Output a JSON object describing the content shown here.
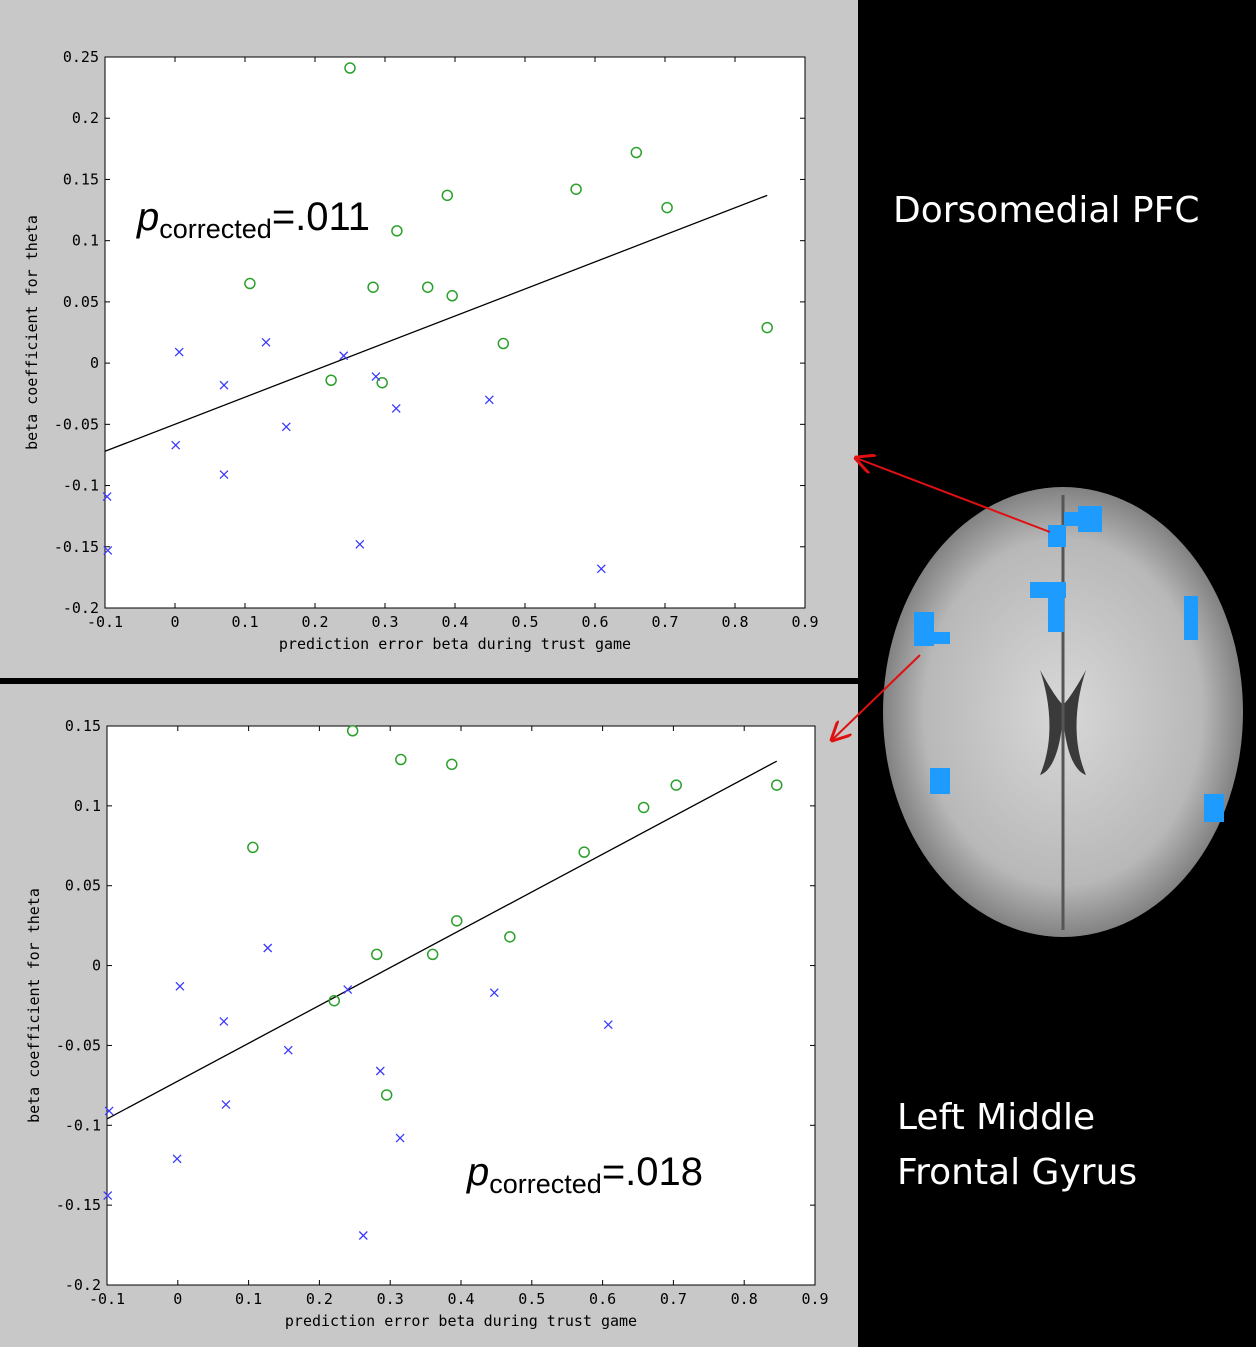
{
  "chart_data": [
    {
      "type": "scatter",
      "region_label": [
        "Dorsomedial PFC"
      ],
      "annotation": {
        "symbol": "p",
        "subscript": "corrected",
        "text": "=.011"
      },
      "x_label": "prediction error beta during trust game",
      "y_label": "beta coefficient for theta",
      "xlim": [
        -0.1,
        0.9
      ],
      "ylim": [
        -0.2,
        0.25
      ],
      "xticks": [
        -0.1,
        0,
        0.1,
        0.2,
        0.3,
        0.4,
        0.5,
        0.6,
        0.7,
        0.8,
        0.9
      ],
      "yticks": [
        -0.2,
        -0.15,
        -0.1,
        -0.05,
        0,
        0.05,
        0.1,
        0.15,
        0.2,
        0.25
      ],
      "series": [
        {
          "color": "#2ca02c",
          "marker": "o",
          "x": [
            0.25,
            0.107,
            0.223,
            0.283,
            0.296,
            0.317,
            0.361,
            0.389,
            0.396,
            0.469,
            0.573,
            0.659,
            0.703,
            0.846
          ],
          "values": [
            0.241,
            0.065,
            -0.014,
            0.062,
            -0.016,
            0.108,
            0.062,
            0.137,
            0.055,
            0.016,
            0.142,
            0.172,
            0.127,
            0.029
          ]
        },
        {
          "color": "#3a3aff",
          "marker": "x",
          "x": [
            -0.097,
            -0.096,
            0.001,
            0.006,
            0.07,
            0.07,
            0.13,
            0.159,
            0.241,
            0.264,
            0.287,
            0.316,
            0.449,
            0.609
          ],
          "values": [
            -0.109,
            -0.153,
            -0.067,
            0.009,
            -0.018,
            -0.091,
            0.017,
            -0.052,
            0.006,
            -0.148,
            -0.011,
            -0.037,
            -0.03,
            -0.168
          ]
        }
      ],
      "trend_line": {
        "color": "#000000",
        "x": [
          -0.1,
          0.846
        ],
        "y": [
          -0.072,
          0.137
        ]
      }
    },
    {
      "type": "scatter",
      "region_label": [
        "Left Middle",
        "Frontal Gyrus"
      ],
      "annotation": {
        "symbol": "p",
        "subscript": "corrected",
        "text": "=.018"
      },
      "x_label": "prediction error beta during trust game",
      "y_label": "beta coefficient for theta",
      "xlim": [
        -0.1,
        0.9
      ],
      "ylim": [
        -0.2,
        0.15
      ],
      "xticks": [
        -0.1,
        0,
        0.1,
        0.2,
        0.3,
        0.4,
        0.5,
        0.6,
        0.7,
        0.8,
        0.9
      ],
      "yticks": [
        -0.2,
        -0.15,
        -0.1,
        -0.05,
        0,
        0.05,
        0.1,
        0.15
      ],
      "series": [
        {
          "color": "#2ca02c",
          "marker": "o",
          "x": [
            0.247,
            0.106,
            0.221,
            0.281,
            0.295,
            0.315,
            0.36,
            0.387,
            0.394,
            0.469,
            0.574,
            0.658,
            0.704,
            0.846
          ],
          "values": [
            0.147,
            0.074,
            -0.022,
            0.007,
            -0.081,
            0.129,
            0.007,
            0.126,
            0.028,
            0.018,
            0.071,
            0.099,
            0.113,
            0.113
          ]
        },
        {
          "color": "#3a3aff",
          "marker": "x",
          "x": [
            -0.097,
            -0.099,
            0.003,
            -0.001,
            0.065,
            0.068,
            0.127,
            0.156,
            0.24,
            0.262,
            0.286,
            0.314,
            0.447,
            0.608
          ],
          "values": [
            -0.091,
            -0.144,
            -0.013,
            -0.121,
            -0.035,
            -0.087,
            0.011,
            -0.053,
            -0.015,
            -0.169,
            -0.066,
            -0.108,
            -0.017,
            -0.037
          ]
        }
      ],
      "trend_line": {
        "color": "#000000",
        "x": [
          -0.1,
          0.846
        ],
        "y": [
          -0.096,
          0.128
        ]
      }
    }
  ]
}
